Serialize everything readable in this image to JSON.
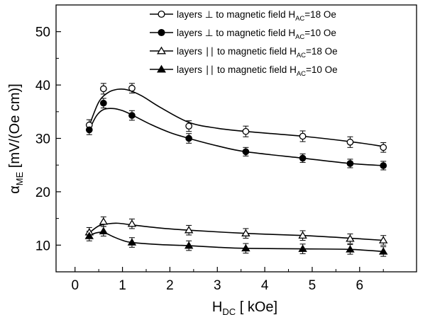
{
  "chart_data": {
    "type": "scatter",
    "xlabel": {
      "main": "H",
      "sub": "DC",
      "unit": " [ kOe]"
    },
    "ylabel": {
      "main": "α",
      "sub": "ME",
      "unit": " [mV/(Oe cm)]"
    },
    "xlim": [
      -0.4,
      7.2
    ],
    "ylim": [
      5,
      55
    ],
    "xticks": [
      0,
      1,
      2,
      3,
      4,
      5,
      6
    ],
    "yticks": [
      10,
      20,
      30,
      40,
      50
    ],
    "grid": false,
    "legend_position": "top-right",
    "x": [
      0.3,
      0.6,
      1.2,
      2.4,
      3.6,
      4.8,
      5.8,
      6.5
    ],
    "series": [
      {
        "legend": {
          "pre": "layers ⊥ to magnetic field H",
          "sub": "AC",
          "post": "=18 Oe"
        },
        "marker": "circle",
        "filled": false,
        "y": [
          32.5,
          39.3,
          39.4,
          32.3,
          31.3,
          30.4,
          29.3,
          28.3
        ],
        "err": [
          1.0,
          1.0,
          0.9,
          1.0,
          1.0,
          1.0,
          1.0,
          0.9
        ],
        "fit": [
          [
            0.3,
            32.4
          ],
          [
            0.5,
            36.8
          ],
          [
            0.7,
            38.6
          ],
          [
            0.9,
            39.2
          ],
          [
            1.1,
            39.1
          ],
          [
            1.4,
            38.0
          ],
          [
            1.8,
            35.8
          ],
          [
            2.4,
            33.0
          ],
          [
            3.0,
            31.9
          ],
          [
            3.6,
            31.3
          ],
          [
            4.8,
            30.4
          ],
          [
            5.8,
            29.4
          ],
          [
            6.5,
            28.5
          ]
        ]
      },
      {
        "legend": {
          "pre": "layers ⊥ to magnetic field H",
          "sub": "AC",
          "post": "=10 Oe"
        },
        "marker": "circle",
        "filled": true,
        "y": [
          31.6,
          36.6,
          34.3,
          30.0,
          27.5,
          26.3,
          25.3,
          24.9
        ],
        "err": [
          0.9,
          0.9,
          0.9,
          0.9,
          0.8,
          0.8,
          0.8,
          0.8
        ],
        "fit": [
          [
            0.3,
            31.6
          ],
          [
            0.45,
            34.2
          ],
          [
            0.6,
            35.4
          ],
          [
            0.8,
            35.6
          ],
          [
            1.0,
            35.2
          ],
          [
            1.2,
            34.4
          ],
          [
            1.6,
            32.6
          ],
          [
            2.0,
            31.1
          ],
          [
            2.4,
            30.0
          ],
          [
            3.0,
            28.6
          ],
          [
            3.6,
            27.5
          ],
          [
            4.8,
            26.3
          ],
          [
            5.8,
            25.3
          ],
          [
            6.5,
            24.9
          ]
        ]
      },
      {
        "legend": {
          "pre": "layers ∣∣ to magnetic field H",
          "sub": "AC",
          "post": "=18 Oe"
        },
        "marker": "triangle",
        "filled": false,
        "y": [
          12.4,
          14.4,
          14.0,
          12.8,
          12.2,
          11.8,
          11.2,
          10.9
        ],
        "err": [
          0.9,
          0.9,
          0.9,
          0.9,
          0.9,
          0.9,
          0.9,
          0.9
        ],
        "fit": [
          [
            0.3,
            12.3
          ],
          [
            0.5,
            13.6
          ],
          [
            0.7,
            14.0
          ],
          [
            0.9,
            14.1
          ],
          [
            1.2,
            13.8
          ],
          [
            1.8,
            13.2
          ],
          [
            2.4,
            12.8
          ],
          [
            3.6,
            12.2
          ],
          [
            4.8,
            11.8
          ],
          [
            5.8,
            11.3
          ],
          [
            6.5,
            10.9
          ]
        ]
      },
      {
        "legend": {
          "pre": "layers ∣∣ to magnetic field H",
          "sub": "AC",
          "post": "=10 Oe"
        },
        "marker": "triangle",
        "filled": true,
        "y": [
          11.7,
          12.6,
          10.5,
          9.9,
          9.4,
          9.3,
          9.2,
          8.8
        ],
        "err": [
          0.9,
          0.9,
          0.9,
          0.9,
          0.9,
          0.9,
          0.9,
          0.9
        ],
        "fit": [
          [
            0.3,
            11.8
          ],
          [
            0.45,
            12.3
          ],
          [
            0.6,
            12.4
          ],
          [
            0.8,
            11.6
          ],
          [
            1.0,
            10.9
          ],
          [
            1.2,
            10.5
          ],
          [
            1.8,
            10.1
          ],
          [
            2.4,
            9.9
          ],
          [
            3.0,
            9.6
          ],
          [
            3.6,
            9.4
          ],
          [
            4.8,
            9.3
          ],
          [
            5.8,
            9.2
          ],
          [
            6.5,
            8.8
          ]
        ]
      }
    ]
  }
}
